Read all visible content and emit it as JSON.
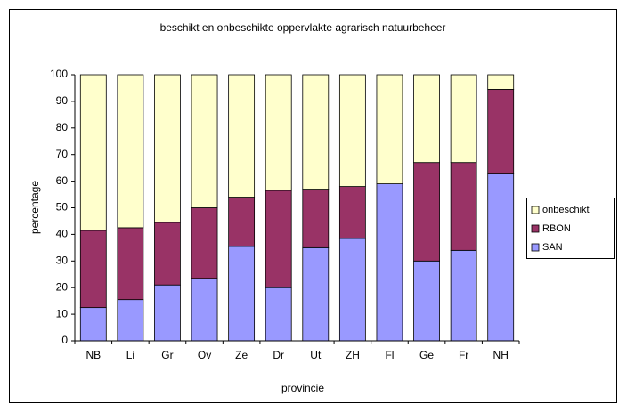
{
  "chart_data": {
    "type": "stacked_bar",
    "title": "beschikt en onbeschikte oppervlakte agrarisch natuurbeheer",
    "x_label": "provincie",
    "y_label": "percentage",
    "categories": [
      "NB",
      "Li",
      "Gr",
      "Ov",
      "Ze",
      "Dr",
      "Ut",
      "ZH",
      "Fl",
      "Ge",
      "Fr",
      "NH"
    ],
    "series": [
      {
        "name": "SAN",
        "color": "#9999ff",
        "values": [
          12.5,
          15.5,
          21,
          23.5,
          35.5,
          20,
          35,
          38.5,
          59,
          30,
          34,
          63
        ]
      },
      {
        "name": "RBON",
        "color": "#993366",
        "values": [
          29,
          27,
          23.5,
          26.5,
          18.5,
          36.5,
          22,
          19.5,
          0,
          37,
          33,
          31.5
        ]
      },
      {
        "name": "onbeschikt",
        "color": "#ffffcc",
        "values": [
          58.5,
          57.5,
          55.5,
          50,
          46,
          43.5,
          43,
          42,
          41,
          33,
          33,
          5.5
        ]
      }
    ],
    "ylim": [
      0,
      100
    ],
    "yticks": [
      0,
      10,
      20,
      30,
      40,
      50,
      60,
      70,
      80,
      90,
      100
    ],
    "grid": false,
    "legend": "right"
  }
}
